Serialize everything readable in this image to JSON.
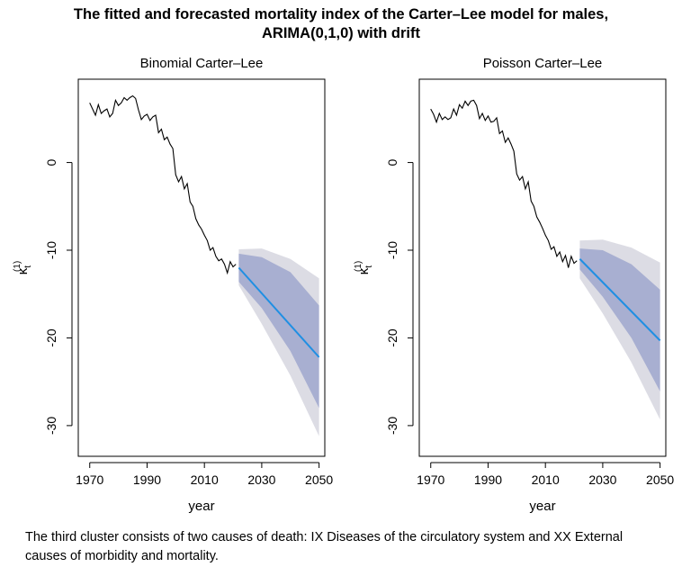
{
  "figure": {
    "title_line1": "The fitted and forecasted mortality index of the Carter–Lee model for males,",
    "title_line2": "ARIMA(0,1,0) with drift"
  },
  "caption": "The third cluster consists of two causes of death: IX Diseases of the circulatory system and XX External causes of morbidity and mortality.",
  "colors": {
    "fitted_line": "#000000",
    "forecast_line": "#1f8fe3",
    "band_inner": "#a8afd1",
    "band_outer": "#dcdce4"
  },
  "chart_data": [
    {
      "type": "line",
      "title": "Binomial Carter–Lee",
      "xlabel": "year",
      "ylabel": "κ_t^(1)",
      "xlim": [
        1966,
        2052
      ],
      "ylim": [
        -33.5,
        9.5
      ],
      "xticks": [
        1970,
        1990,
        2010,
        2030,
        2050
      ],
      "yticks": [
        0,
        -10,
        -20,
        -30
      ],
      "series": [
        {
          "role": "fitted",
          "x": [
            1970,
            1971,
            1972,
            1973,
            1974,
            1975,
            1976,
            1977,
            1978,
            1979,
            1980,
            1981,
            1982,
            1983,
            1984,
            1985,
            1986,
            1987,
            1988,
            1989,
            1990,
            1991,
            1992,
            1993,
            1994,
            1995,
            1996,
            1997,
            1998,
            1999,
            2000,
            2001,
            2002,
            2003,
            2004,
            2005,
            2006,
            2007,
            2008,
            2009,
            2010,
            2011,
            2012,
            2013,
            2014,
            2015,
            2016,
            2017,
            2018,
            2019,
            2020,
            2021
          ],
          "y": [
            6.8,
            6.1,
            5.4,
            6.6,
            5.6,
            5.9,
            6.1,
            5.2,
            5.6,
            7.1,
            6.5,
            6.8,
            7.4,
            7.1,
            7.4,
            7.6,
            7.3,
            6.0,
            4.9,
            5.3,
            5.5,
            4.8,
            5.2,
            5.4,
            3.4,
            3.8,
            2.6,
            2.9,
            2.1,
            1.6,
            -1.4,
            -2.2,
            -1.6,
            -3.0,
            -2.4,
            -4.5,
            -5.0,
            -6.4,
            -7.1,
            -7.6,
            -8.3,
            -8.9,
            -10.0,
            -9.7,
            -10.7,
            -11.2,
            -11.0,
            -11.6,
            -12.6,
            -11.3,
            -11.9,
            -11.6
          ]
        },
        {
          "role": "forecast",
          "x": [
            2022,
            2050
          ],
          "y": [
            -12.0,
            -22.2
          ],
          "band_inner": {
            "x": [
              2022,
              2030,
              2040,
              2050
            ],
            "upper": [
              -10.4,
              -10.8,
              -12.5,
              -16.3
            ],
            "lower": [
              -13.6,
              -16.6,
              -21.5,
              -28.0
            ]
          },
          "band_outer": {
            "x": [
              2022,
              2030,
              2040,
              2050
            ],
            "upper": [
              -9.9,
              -9.8,
              -11.0,
              -13.2
            ],
            "lower": [
              -14.0,
              -18.4,
              -24.3,
              -31.2
            ]
          }
        }
      ]
    },
    {
      "type": "line",
      "title": "Poisson Carter–Lee",
      "xlabel": "year",
      "ylabel": "κ_t^(1)",
      "xlim": [
        1966,
        2052
      ],
      "ylim": [
        -33.5,
        9.5
      ],
      "xticks": [
        1970,
        1990,
        2010,
        2030,
        2050
      ],
      "yticks": [
        0,
        -10,
        -20,
        -30
      ],
      "series": [
        {
          "role": "fitted",
          "x": [
            1970,
            1971,
            1972,
            1973,
            1974,
            1975,
            1976,
            1977,
            1978,
            1979,
            1980,
            1981,
            1982,
            1983,
            1984,
            1985,
            1986,
            1987,
            1988,
            1989,
            1990,
            1991,
            1992,
            1993,
            1994,
            1995,
            1996,
            1997,
            1998,
            1999,
            2000,
            2001,
            2002,
            2003,
            2004,
            2005,
            2006,
            2007,
            2008,
            2009,
            2010,
            2011,
            2012,
            2013,
            2014,
            2015,
            2016,
            2017,
            2018,
            2019,
            2020,
            2021
          ],
          "y": [
            6.1,
            5.5,
            4.6,
            5.6,
            4.9,
            5.2,
            4.9,
            5.1,
            6.1,
            5.4,
            6.6,
            6.2,
            7.0,
            6.5,
            7.0,
            7.1,
            6.5,
            5.0,
            5.6,
            4.8,
            5.3,
            4.6,
            4.7,
            5.1,
            3.3,
            3.6,
            2.3,
            2.8,
            2.1,
            1.3,
            -1.3,
            -2.0,
            -1.6,
            -3.0,
            -2.2,
            -4.4,
            -5.0,
            -6.2,
            -6.8,
            -7.5,
            -8.3,
            -8.9,
            -9.9,
            -9.6,
            -10.7,
            -10.2,
            -11.3,
            -10.6,
            -12.0,
            -10.7,
            -11.5,
            -11.2
          ]
        },
        {
          "role": "forecast",
          "x": [
            2022,
            2050
          ],
          "y": [
            -11.0,
            -20.3
          ],
          "band_inner": {
            "x": [
              2022,
              2030,
              2040,
              2050
            ],
            "upper": [
              -9.8,
              -10.0,
              -11.6,
              -14.5
            ],
            "lower": [
              -12.2,
              -15.3,
              -20.0,
              -26.1
            ]
          },
          "band_outer": {
            "x": [
              2022,
              2030,
              2040,
              2050
            ],
            "upper": [
              -8.9,
              -8.8,
              -9.7,
              -11.4
            ],
            "lower": [
              -13.2,
              -17.2,
              -22.8,
              -29.3
            ]
          }
        }
      ]
    }
  ]
}
